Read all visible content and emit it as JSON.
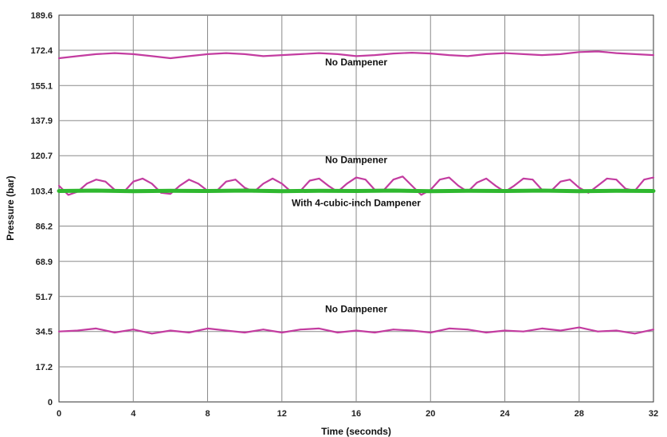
{
  "chart_data": {
    "type": "line",
    "title": "",
    "xlabel": "Time (seconds)",
    "ylabel": "Pressure (bar)",
    "xlim": [
      0,
      32
    ],
    "ylim": [
      0,
      189.6
    ],
    "x_ticks": [
      "0",
      "4",
      "8",
      "12",
      "16",
      "20",
      "24",
      "28",
      "32"
    ],
    "y_ticks": [
      "0",
      "17.2",
      "34.5",
      "51.7",
      "68.9",
      "86.2",
      "103.4",
      "120.7",
      "137.9",
      "155.1",
      "172.4",
      "189.6"
    ],
    "grid": true,
    "series": [
      {
        "color": "#c33ca0",
        "x": [
          0,
          1,
          2,
          3,
          4,
          5,
          6,
          7,
          8,
          9,
          10,
          11,
          12,
          13,
          14,
          15,
          16,
          17,
          18,
          19,
          20,
          21,
          22,
          23,
          24,
          25,
          26,
          27,
          28,
          29,
          30,
          31,
          32
        ],
        "values": [
          168.5,
          169.5,
          170.5,
          171,
          170.5,
          169.5,
          168.5,
          169.5,
          170.5,
          171,
          170.5,
          169.5,
          170,
          170.5,
          171,
          170.5,
          169.5,
          170,
          170.8,
          171.2,
          170.8,
          170,
          169.5,
          170.5,
          171,
          170.5,
          170,
          170.5,
          171.5,
          171.8,
          171,
          170.5,
          170
        ]
      },
      {
        "color": "#c33ca0",
        "x": [
          0,
          0.5,
          1,
          1.5,
          2,
          2.5,
          3,
          3.5,
          4,
          4.5,
          5,
          5.5,
          6,
          6.5,
          7,
          7.5,
          8,
          8.5,
          9,
          9.5,
          10,
          10.5,
          11,
          11.5,
          12,
          12.5,
          13,
          13.5,
          14,
          14.5,
          15,
          15.5,
          16,
          16.5,
          17,
          17.5,
          18,
          18.5,
          19,
          19.5,
          20,
          20.5,
          21,
          21.5,
          22,
          22.5,
          23,
          23.5,
          24,
          24.5,
          25,
          25.5,
          26,
          26.5,
          27,
          27.5,
          28,
          28.5,
          29,
          29.5,
          30,
          30.5,
          31,
          31.5,
          32
        ],
        "values": [
          106,
          101.5,
          103,
          107,
          109,
          108,
          104,
          103,
          108,
          109.5,
          107,
          102.5,
          102,
          106,
          109,
          107,
          103.5,
          103.5,
          108,
          109,
          105,
          103,
          107,
          109.5,
          107,
          103,
          103.5,
          108.5,
          109.5,
          106,
          103,
          107,
          110,
          109,
          104,
          104,
          109,
          110.5,
          106,
          101.5,
          104,
          109,
          110,
          106,
          103,
          107.5,
          109.5,
          106,
          103,
          106,
          109.5,
          109,
          104,
          103.5,
          108,
          109,
          105,
          102.5,
          106,
          109.5,
          109,
          104.5,
          103.5,
          109,
          110
        ]
      },
      {
        "color": "#2fb82f",
        "x": [
          0,
          2,
          4,
          6,
          8,
          10,
          12,
          14,
          16,
          18,
          20,
          22,
          24,
          26,
          28,
          30,
          32
        ],
        "values": [
          103.4,
          103.6,
          103.3,
          103.5,
          103.4,
          103.6,
          103.3,
          103.5,
          103.4,
          103.6,
          103.3,
          103.5,
          103.4,
          103.6,
          103.3,
          103.5,
          103.4
        ]
      },
      {
        "color": "#c33ca0",
        "x": [
          0,
          1,
          2,
          3,
          4,
          5,
          6,
          7,
          8,
          9,
          10,
          11,
          12,
          13,
          14,
          15,
          16,
          17,
          18,
          19,
          20,
          21,
          22,
          23,
          24,
          25,
          26,
          27,
          28,
          29,
          30,
          31,
          32
        ],
        "values": [
          34.5,
          35,
          36,
          34,
          35.5,
          33.5,
          35,
          34,
          36,
          35,
          34,
          35.5,
          34,
          35.5,
          36,
          34,
          35,
          34,
          35.5,
          35,
          34,
          36,
          35.5,
          34,
          35,
          34.5,
          36,
          35,
          36.5,
          34.5,
          35,
          33.5,
          35.5
        ]
      }
    ],
    "annotations": [
      {
        "text": "No Dampener",
        "x": 16,
        "y": 165
      },
      {
        "text": "No Dampener",
        "x": 16,
        "y": 117
      },
      {
        "text": "With 4-cubic-inch Dampener",
        "x": 16,
        "y": 96
      },
      {
        "text": "No Dampener",
        "x": 16,
        "y": 44
      }
    ]
  }
}
